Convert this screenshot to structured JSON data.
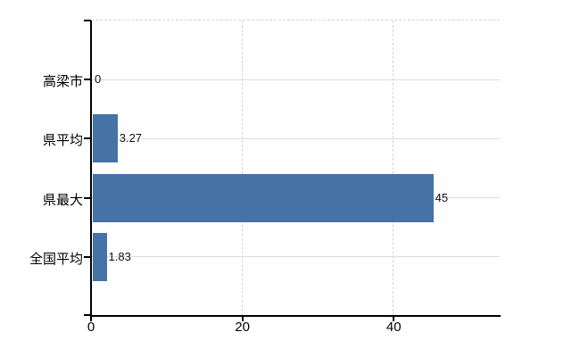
{
  "chart_data": {
    "type": "bar",
    "orientation": "horizontal",
    "title": "",
    "xlabel": "",
    "ylabel": "",
    "categories": [
      "高梁市",
      "県平均",
      "県最大",
      "全国平均"
    ],
    "values": [
      0,
      3.27,
      45,
      1.83
    ],
    "value_labels": [
      "0",
      "3.27",
      "45",
      "1.83"
    ],
    "x_ticks": [
      0,
      20,
      40
    ],
    "x_tick_labels": [
      "0",
      "20",
      "40"
    ],
    "xlim": [
      0,
      54
    ],
    "grid": "on",
    "legend": "none",
    "colors": {
      "bar": "#4572a7",
      "grid_solid": "#d9ded9",
      "grid_dashed": "#d4d4d4",
      "axis": "#000000",
      "text": "#000000",
      "background": "#ffffff"
    }
  }
}
